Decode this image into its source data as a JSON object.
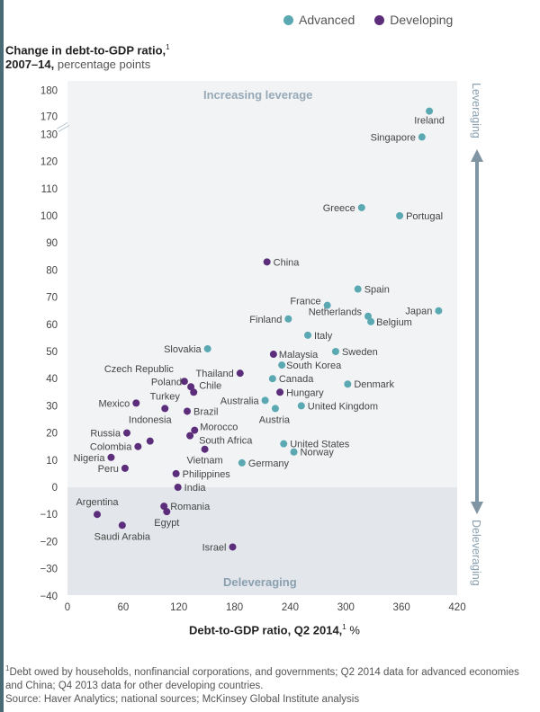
{
  "legend": [
    {
      "label": "Advanced",
      "color": "#5aa8b2"
    },
    {
      "label": "Developing",
      "color": "#5b2d7a"
    }
  ],
  "y_title": {
    "bold": "Change in debt-to-GDP ratio,",
    "sup": "1",
    "bold2": "2007–14,",
    "light": "percentage points"
  },
  "x_title": {
    "bold": "Debt-to-GDP ratio, Q2 2014,",
    "sup": "1",
    "light": "%"
  },
  "regions": {
    "top": "Increasing leverage",
    "bottom": "Deleveraging"
  },
  "side_arrow": {
    "top": "Leveraging",
    "bottom": "Deleveraging"
  },
  "footnote": {
    "sup": "1",
    "text": "Debt owed by households, nonfinancial corporations, and governments; Q2 2014 data for advanced economies and China; Q4 2013 data for other developing countries."
  },
  "source": "Source: Haver Analytics; national sources; McKinsey Global Institute analysis",
  "chart_data": {
    "type": "scatter",
    "title": "Change in debt-to-GDP ratio, 2007–14, percentage points",
    "xlabel": "Debt-to-GDP ratio, Q2 2014, %",
    "ylabel": "Change in debt-to-GDP ratio, 2007–14, percentage points",
    "xlim": [
      0,
      420
    ],
    "ylim": [
      -40,
      180
    ],
    "y_axis_break": [
      130,
      170
    ],
    "x_ticks": [
      "0",
      "60",
      "120",
      "180",
      "240",
      "300",
      "360",
      "420"
    ],
    "y_ticks": [
      "180",
      "170",
      "130",
      "120",
      "110",
      "100",
      "90",
      "80",
      "70",
      "60",
      "50",
      "40",
      "30",
      "20",
      "10",
      "0",
      "-10",
      "-20",
      "-30",
      "-40"
    ],
    "legend_position": "top-right",
    "colors": {
      "Advanced": "#5aa8b2",
      "Developing": "#5b2d7a"
    },
    "series": [
      {
        "name": "Advanced",
        "points": [
          {
            "label": "Ireland",
            "x": 390,
            "y": 172
          },
          {
            "label": "Singapore",
            "x": 382,
            "y": 129
          },
          {
            "label": "Greece",
            "x": 317,
            "y": 103
          },
          {
            "label": "Portugal",
            "x": 358,
            "y": 100
          },
          {
            "label": "Spain",
            "x": 313,
            "y": 73
          },
          {
            "label": "France",
            "x": 280,
            "y": 67
          },
          {
            "label": "Finland",
            "x": 238,
            "y": 62
          },
          {
            "label": "Netherlands",
            "x": 324,
            "y": 63
          },
          {
            "label": "Belgium",
            "x": 327,
            "y": 61
          },
          {
            "label": "Japan",
            "x": 400,
            "y": 65
          },
          {
            "label": "Italy",
            "x": 259,
            "y": 56
          },
          {
            "label": "Sweden",
            "x": 289,
            "y": 50
          },
          {
            "label": "Slovakia",
            "x": 151,
            "y": 51
          },
          {
            "label": "South Korea",
            "x": 231,
            "y": 45
          },
          {
            "label": "Canada",
            "x": 221,
            "y": 40
          },
          {
            "label": "Denmark",
            "x": 302,
            "y": 38
          },
          {
            "label": "Australia",
            "x": 213,
            "y": 32
          },
          {
            "label": "Austria",
            "x": 224,
            "y": 29
          },
          {
            "label": "United Kingdom",
            "x": 252,
            "y": 30
          },
          {
            "label": "United States",
            "x": 233,
            "y": 16
          },
          {
            "label": "Norway",
            "x": 244,
            "y": 13
          },
          {
            "label": "Germany",
            "x": 188,
            "y": 9
          }
        ]
      },
      {
        "name": "Developing",
        "points": [
          {
            "label": "China",
            "x": 215,
            "y": 83
          },
          {
            "label": "Malaysia",
            "x": 222,
            "y": 49
          },
          {
            "label": "Thailand",
            "x": 186,
            "y": 42
          },
          {
            "label": "Hungary",
            "x": 229,
            "y": 35
          },
          {
            "label": "Czech Republic",
            "x": 126,
            "y": 39
          },
          {
            "label": "Poland",
            "x": 133,
            "y": 37
          },
          {
            "label": "Chile",
            "x": 136,
            "y": 35
          },
          {
            "label": "Mexico",
            "x": 74,
            "y": 31
          },
          {
            "label": "Turkey",
            "x": 105,
            "y": 29
          },
          {
            "label": "Brazil",
            "x": 129,
            "y": 28
          },
          {
            "label": "Morocco",
            "x": 137,
            "y": 21
          },
          {
            "label": "South Africa",
            "x": 132,
            "y": 19
          },
          {
            "label": "Russia",
            "x": 64,
            "y": 20
          },
          {
            "label": "Indonesia",
            "x": 89,
            "y": 17
          },
          {
            "label": "Colombia",
            "x": 76,
            "y": 15
          },
          {
            "label": "Vietnam",
            "x": 148,
            "y": 14
          },
          {
            "label": "Nigeria",
            "x": 47,
            "y": 11
          },
          {
            "label": "Peru",
            "x": 62,
            "y": 7
          },
          {
            "label": "Philippines",
            "x": 117,
            "y": 5
          },
          {
            "label": "India",
            "x": 119,
            "y": 0
          },
          {
            "label": "Romania",
            "x": 104,
            "y": -7
          },
          {
            "label": "Egypt",
            "x": 107,
            "y": -9
          },
          {
            "label": "Argentina",
            "x": 32,
            "y": -10
          },
          {
            "label": "Saudi Arabia",
            "x": 59,
            "y": -14
          },
          {
            "label": "Israel",
            "x": 178,
            "y": -22
          }
        ]
      }
    ]
  }
}
